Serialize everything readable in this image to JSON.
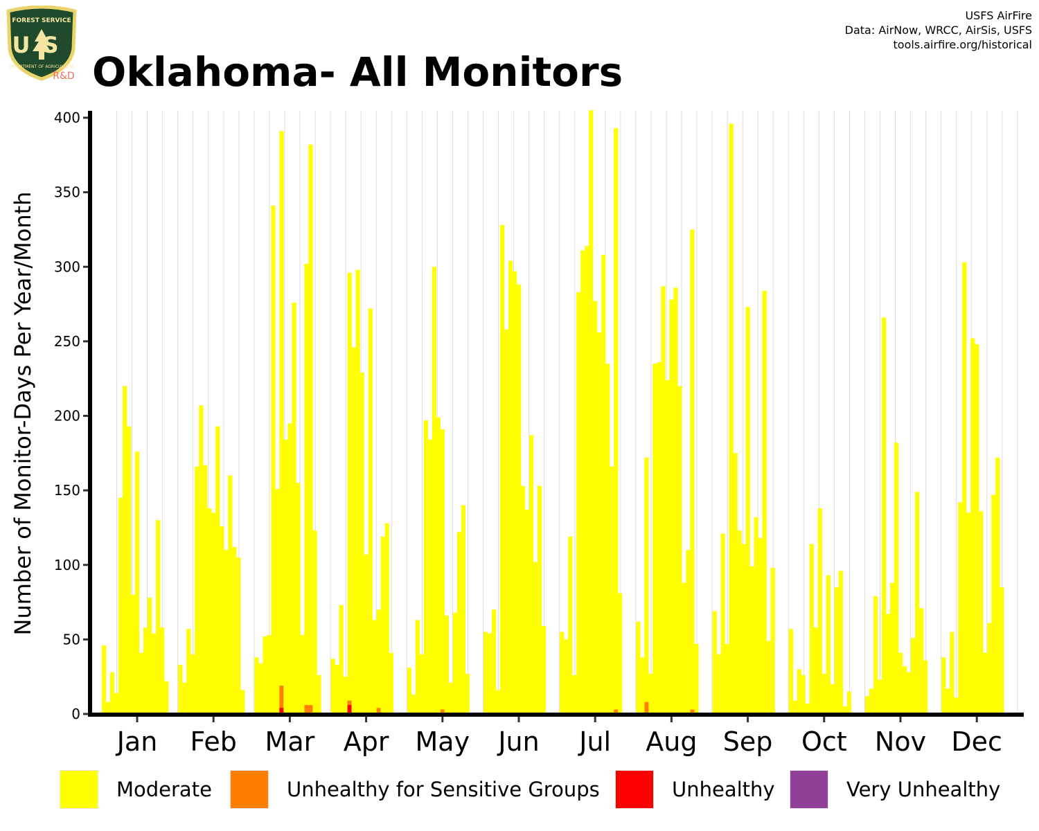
{
  "logo": {
    "icon": "us-forest-service-shield-icon",
    "text_top": "FOREST SERVICE",
    "text_main": "USFS",
    "text_bottom": "DEPARTMENT OF AGRICULTURE",
    "tag": "R&D",
    "colors": {
      "shield": "#1f4a2c",
      "border": "#e9d36a",
      "letters": "#f4e6a2",
      "tag": "#e8705e"
    }
  },
  "header": {
    "title": "Oklahoma- All Monitors",
    "credits": [
      "USFS AirFire",
      "Data: AirNow, WRCC, AirSis, USFS",
      "tools.airfire.org/historical"
    ]
  },
  "chart_data": {
    "type": "bar",
    "stacked": true,
    "title": "Oklahoma- All Monitors",
    "xlabel": "",
    "ylabel": "Number of Monitor-Days Per Year/Month",
    "ylim": [
      0,
      405
    ],
    "yticks": [
      0,
      50,
      100,
      150,
      200,
      250,
      300,
      350,
      400
    ],
    "grid": "vertical gridlines between months",
    "legend_position": "bottom",
    "categories": [
      "Jan",
      "Feb",
      "Mar",
      "Apr",
      "May",
      "Jun",
      "Jul",
      "Aug",
      "Sep",
      "Oct",
      "Nov",
      "Dec"
    ],
    "colors": {
      "Moderate": "#ffff00",
      "Unhealthy for Sensitive Groups": "#ff7e00",
      "Unhealthy": "#ff0000",
      "Very Unhealthy": "#8f3f97"
    },
    "legend": [
      "Moderate",
      "Unhealthy for Sensitive Groups",
      "Unhealthy",
      "Very Unhealthy"
    ],
    "months": [
      {
        "month": "Jan",
        "moderate": [
          46,
          8,
          28,
          14,
          145,
          220,
          193,
          80,
          176,
          41,
          58,
          78,
          54,
          130,
          58,
          22
        ],
        "usg": [],
        "unhealthy": []
      },
      {
        "month": "Feb",
        "moderate": [
          33,
          21,
          57,
          40,
          166,
          207,
          167,
          138,
          135,
          193,
          126,
          110,
          160,
          112,
          105,
          16
        ],
        "usg": [],
        "unhealthy": []
      },
      {
        "month": "Mar",
        "moderate": [
          38,
          34,
          52,
          53,
          341,
          151,
          391,
          184,
          195,
          276,
          155,
          53,
          302,
          382,
          123,
          26
        ],
        "usg": [
          0,
          0,
          0,
          0,
          0,
          0,
          19,
          0,
          0,
          0,
          0,
          0,
          6,
          6,
          0,
          0
        ],
        "unhealthy": [
          0,
          0,
          0,
          0,
          0,
          0,
          4,
          0,
          0,
          0,
          0,
          0,
          0,
          0,
          0,
          0
        ]
      },
      {
        "month": "Apr",
        "moderate": [
          37,
          33,
          73,
          25,
          296,
          246,
          298,
          229,
          107,
          272,
          63,
          70,
          119,
          128,
          41,
          0
        ],
        "usg": [
          0,
          0,
          0,
          0,
          9,
          0,
          0,
          0,
          0,
          0,
          0,
          4,
          0,
          0,
          0,
          0
        ],
        "unhealthy": [
          0,
          0,
          0,
          0,
          6,
          0,
          0,
          0,
          0,
          0,
          0,
          0,
          0,
          0,
          0,
          0
        ]
      },
      {
        "month": "May",
        "moderate": [
          31,
          13,
          63,
          40,
          197,
          184,
          300,
          199,
          191,
          66,
          21,
          68,
          122,
          140,
          27,
          0
        ],
        "usg": [
          0,
          0,
          0,
          0,
          0,
          0,
          0,
          0,
          3,
          0,
          0,
          0,
          0,
          0,
          0,
          0
        ],
        "unhealthy": []
      },
      {
        "month": "Jun",
        "moderate": [
          55,
          54,
          70,
          16,
          328,
          258,
          304,
          297,
          288,
          153,
          137,
          187,
          102,
          153,
          59,
          0
        ],
        "usg": [],
        "unhealthy": []
      },
      {
        "month": "Jul",
        "moderate": [
          55,
          50,
          119,
          26,
          283,
          311,
          314,
          405,
          277,
          256,
          308,
          235,
          166,
          393,
          81,
          0
        ],
        "usg": [
          0,
          0,
          0,
          0,
          0,
          0,
          0,
          0,
          0,
          0,
          0,
          0,
          0,
          3,
          0,
          0
        ],
        "unhealthy": []
      },
      {
        "month": "Aug",
        "moderate": [
          62,
          38,
          172,
          27,
          235,
          236,
          287,
          224,
          278,
          286,
          220,
          88,
          110,
          325,
          47,
          0
        ],
        "usg": [
          0,
          0,
          8,
          0,
          0,
          0,
          0,
          0,
          0,
          0,
          0,
          0,
          0,
          3,
          0,
          0
        ],
        "unhealthy": []
      },
      {
        "month": "Sep",
        "moderate": [
          69,
          40,
          121,
          47,
          396,
          175,
          123,
          114,
          273,
          99,
          132,
          118,
          284,
          49,
          98,
          0
        ],
        "usg": [],
        "unhealthy": []
      },
      {
        "month": "Oct",
        "moderate": [
          57,
          9,
          30,
          26,
          7,
          114,
          58,
          138,
          27,
          93,
          20,
          85,
          96,
          5,
          15,
          0
        ],
        "usg": [],
        "unhealthy": []
      },
      {
        "month": "Nov",
        "moderate": [
          12,
          17,
          79,
          23,
          266,
          67,
          88,
          182,
          41,
          32,
          28,
          51,
          149,
          71,
          36,
          0
        ],
        "usg": [],
        "unhealthy": []
      },
      {
        "month": "Dec",
        "moderate": [
          38,
          17,
          55,
          11,
          142,
          303,
          135,
          252,
          248,
          136,
          41,
          61,
          147,
          172,
          85,
          0
        ],
        "usg": [],
        "unhealthy": []
      }
    ]
  }
}
